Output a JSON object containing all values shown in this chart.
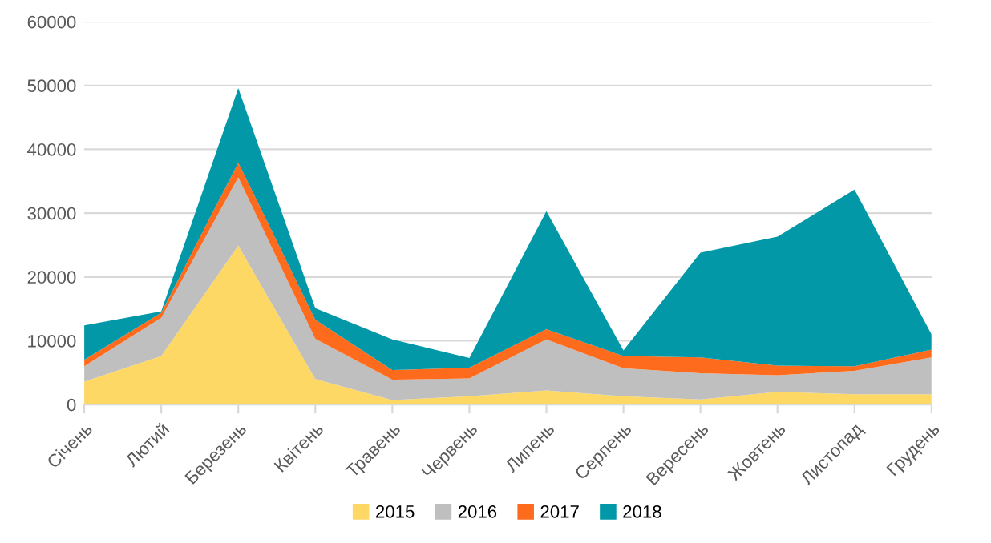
{
  "chart_data": {
    "type": "area",
    "stacked": true,
    "categories": [
      "Січень",
      "Лютий",
      "Березень",
      "Квітень",
      "Травень",
      "Червень",
      "Липень",
      "Серпень",
      "Вересень",
      "Жовтень",
      "Листопад",
      "Грудень"
    ],
    "series": [
      {
        "name": "2015",
        "color": "#fdd865",
        "values": [
          3600,
          7600,
          24900,
          4000,
          700,
          1300,
          2200,
          1300,
          800,
          2000,
          1600,
          1600
        ]
      },
      {
        "name": "2016",
        "color": "#bfbfbf",
        "values": [
          2400,
          6000,
          10700,
          6300,
          3200,
          2800,
          8000,
          4400,
          4100,
          2600,
          3700,
          5800
        ]
      },
      {
        "name": "2017",
        "color": "#fe6b1c",
        "values": [
          1000,
          800,
          2300,
          3000,
          1500,
          1700,
          1600,
          1900,
          2500,
          1500,
          700,
          1200
        ]
      },
      {
        "name": "2018",
        "color": "#0298a8",
        "values": [
          5400,
          200,
          11700,
          1800,
          4800,
          1500,
          18500,
          900,
          16400,
          20200,
          27700,
          2400
        ]
      }
    ],
    "ylim": [
      0,
      60000
    ],
    "yticks": [
      0,
      10000,
      20000,
      30000,
      40000,
      50000,
      60000
    ],
    "grid": "y",
    "legend": "bottom"
  }
}
